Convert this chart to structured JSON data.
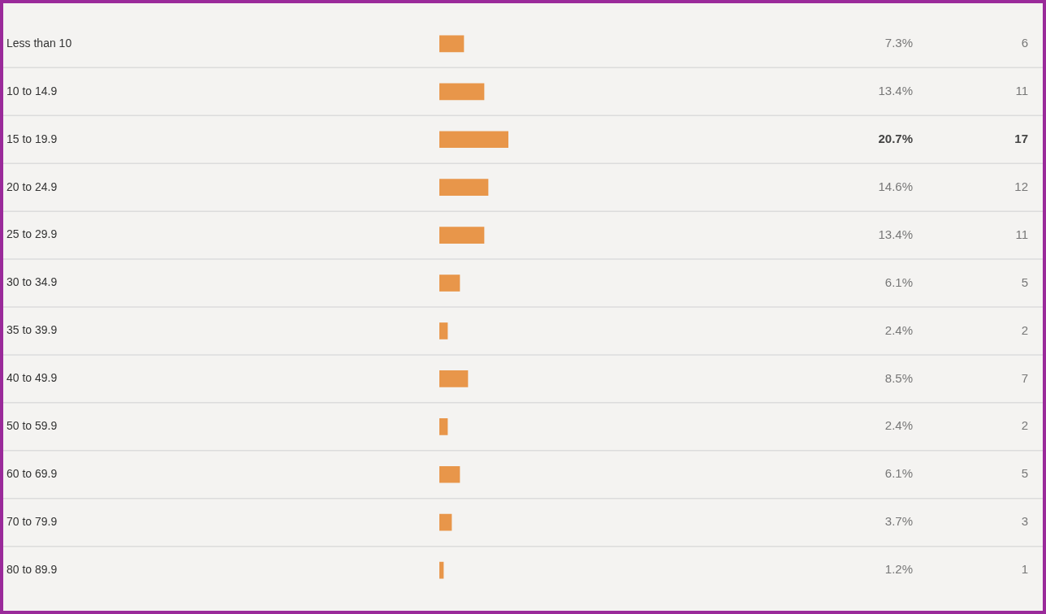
{
  "chart_data": {
    "type": "bar",
    "orientation": "horizontal",
    "categories": [
      "Less than 10",
      "10 to 14.9",
      "15 to 19.9",
      "20 to 24.9",
      "25 to 29.9",
      "30 to 34.9",
      "35 to 39.9",
      "40 to 49.9",
      "50 to 59.9",
      "60 to 69.9",
      "70 to 79.9",
      "80 to 89.9"
    ],
    "values": [
      6,
      11,
      17,
      12,
      11,
      5,
      2,
      7,
      2,
      5,
      3,
      1
    ],
    "color": "#e8964a",
    "data_labels": true,
    "grid": "y",
    "annotations": [
      "7.3%",
      "13.4%",
      "20.7%",
      "14.6%",
      "13.4%",
      "6.1%",
      "2.4%",
      "8.5%",
      "2.4%",
      "6.1%",
      "3.7%",
      "1.2%"
    ]
  }
}
